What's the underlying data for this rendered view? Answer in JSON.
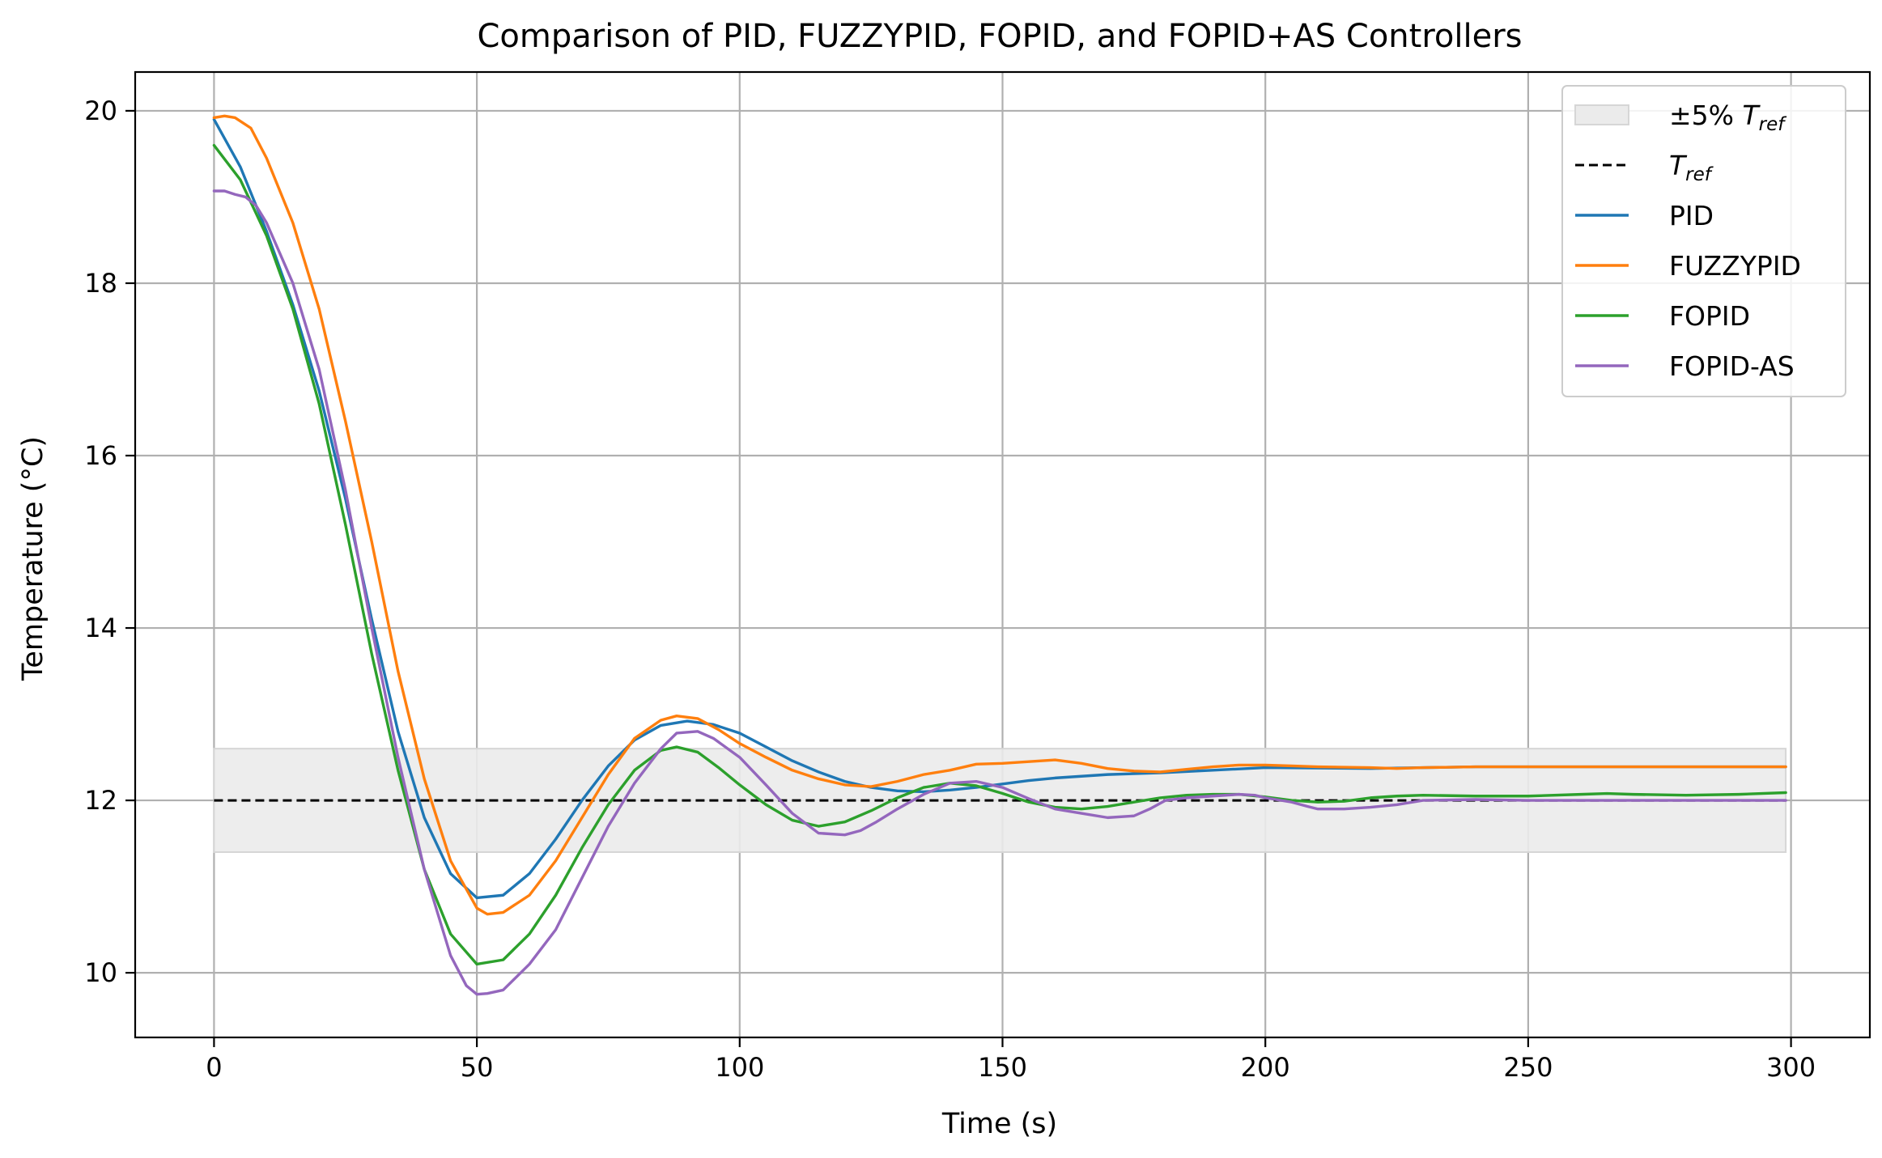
{
  "chart_data": {
    "type": "line",
    "title": "Comparison of PID, FUZZYPID, FOPID, and FOPID+AS Controllers",
    "xlabel": "Time (s)",
    "ylabel": "Temperature (°C)",
    "xlim": [
      -15,
      315
    ],
    "ylim": [
      9.25,
      20.45
    ],
    "xticks": [
      0,
      50,
      100,
      150,
      200,
      250,
      300
    ],
    "yticks": [
      10,
      12,
      14,
      16,
      18,
      20
    ],
    "grid": true,
    "legend_position": "top-right",
    "band": {
      "name": "±5% T",
      "name_sub": "ref",
      "x_range": [
        0,
        299
      ],
      "y_range": [
        11.4,
        12.6
      ],
      "color": "#ebebeb"
    },
    "reference": {
      "name": "T",
      "name_sub": "ref",
      "value": 12,
      "x_range": [
        0,
        299
      ],
      "color": "#000000"
    },
    "series": [
      {
        "name": "PID",
        "color": "#1f77b4",
        "points": [
          [
            0,
            19.9
          ],
          [
            5,
            19.35
          ],
          [
            10,
            18.6
          ],
          [
            15,
            17.75
          ],
          [
            20,
            16.75
          ],
          [
            25,
            15.5
          ],
          [
            30,
            14.1
          ],
          [
            35,
            12.8
          ],
          [
            40,
            11.8
          ],
          [
            45,
            11.15
          ],
          [
            50,
            10.87
          ],
          [
            55,
            10.9
          ],
          [
            60,
            11.15
          ],
          [
            65,
            11.55
          ],
          [
            70,
            12.0
          ],
          [
            75,
            12.4
          ],
          [
            80,
            12.7
          ],
          [
            85,
            12.87
          ],
          [
            90,
            12.92
          ],
          [
            95,
            12.88
          ],
          [
            100,
            12.78
          ],
          [
            105,
            12.62
          ],
          [
            110,
            12.46
          ],
          [
            115,
            12.33
          ],
          [
            120,
            12.22
          ],
          [
            125,
            12.15
          ],
          [
            130,
            12.11
          ],
          [
            135,
            12.1
          ],
          [
            140,
            12.12
          ],
          [
            145,
            12.15
          ],
          [
            150,
            12.19
          ],
          [
            155,
            12.23
          ],
          [
            160,
            12.26
          ],
          [
            170,
            12.3
          ],
          [
            180,
            12.32
          ],
          [
            190,
            12.35
          ],
          [
            200,
            12.38
          ],
          [
            220,
            12.37
          ],
          [
            240,
            12.39
          ],
          [
            260,
            12.39
          ],
          [
            280,
            12.39
          ],
          [
            299,
            12.39
          ]
        ]
      },
      {
        "name": "FUZZYPID",
        "color": "#ff7f0e",
        "points": [
          [
            0,
            19.92
          ],
          [
            2,
            19.94
          ],
          [
            4,
            19.92
          ],
          [
            7,
            19.8
          ],
          [
            10,
            19.45
          ],
          [
            15,
            18.7
          ],
          [
            20,
            17.7
          ],
          [
            25,
            16.4
          ],
          [
            30,
            15.0
          ],
          [
            35,
            13.5
          ],
          [
            40,
            12.25
          ],
          [
            45,
            11.3
          ],
          [
            50,
            10.75
          ],
          [
            52,
            10.68
          ],
          [
            55,
            10.7
          ],
          [
            60,
            10.9
          ],
          [
            65,
            11.3
          ],
          [
            70,
            11.8
          ],
          [
            75,
            12.3
          ],
          [
            80,
            12.72
          ],
          [
            85,
            12.93
          ],
          [
            88,
            12.98
          ],
          [
            92,
            12.95
          ],
          [
            96,
            12.82
          ],
          [
            100,
            12.66
          ],
          [
            105,
            12.5
          ],
          [
            110,
            12.35
          ],
          [
            115,
            12.25
          ],
          [
            120,
            12.18
          ],
          [
            125,
            12.16
          ],
          [
            130,
            12.22
          ],
          [
            135,
            12.3
          ],
          [
            140,
            12.35
          ],
          [
            145,
            12.42
          ],
          [
            150,
            12.43
          ],
          [
            155,
            12.45
          ],
          [
            160,
            12.47
          ],
          [
            165,
            12.43
          ],
          [
            170,
            12.37
          ],
          [
            175,
            12.34
          ],
          [
            180,
            12.33
          ],
          [
            185,
            12.36
          ],
          [
            190,
            12.39
          ],
          [
            195,
            12.41
          ],
          [
            200,
            12.41
          ],
          [
            205,
            12.4
          ],
          [
            210,
            12.39
          ],
          [
            220,
            12.38
          ],
          [
            225,
            12.37
          ],
          [
            230,
            12.38
          ],
          [
            240,
            12.39
          ],
          [
            260,
            12.39
          ],
          [
            280,
            12.39
          ],
          [
            299,
            12.39
          ]
        ]
      },
      {
        "name": "FOPID",
        "color": "#2ca02c",
        "points": [
          [
            0,
            19.6
          ],
          [
            5,
            19.2
          ],
          [
            10,
            18.55
          ],
          [
            15,
            17.7
          ],
          [
            20,
            16.6
          ],
          [
            25,
            15.2
          ],
          [
            30,
            13.7
          ],
          [
            35,
            12.35
          ],
          [
            40,
            11.2
          ],
          [
            45,
            10.45
          ],
          [
            50,
            10.1
          ],
          [
            55,
            10.15
          ],
          [
            60,
            10.45
          ],
          [
            65,
            10.9
          ],
          [
            70,
            11.45
          ],
          [
            75,
            11.95
          ],
          [
            80,
            12.35
          ],
          [
            85,
            12.58
          ],
          [
            88,
            12.62
          ],
          [
            92,
            12.56
          ],
          [
            96,
            12.38
          ],
          [
            100,
            12.18
          ],
          [
            105,
            11.95
          ],
          [
            110,
            11.77
          ],
          [
            115,
            11.7
          ],
          [
            120,
            11.75
          ],
          [
            125,
            11.88
          ],
          [
            130,
            12.03
          ],
          [
            135,
            12.15
          ],
          [
            140,
            12.2
          ],
          [
            145,
            12.17
          ],
          [
            150,
            12.08
          ],
          [
            155,
            11.98
          ],
          [
            160,
            11.92
          ],
          [
            165,
            11.9
          ],
          [
            170,
            11.93
          ],
          [
            175,
            11.98
          ],
          [
            180,
            12.03
          ],
          [
            185,
            12.06
          ],
          [
            190,
            12.07
          ],
          [
            195,
            12.07
          ],
          [
            200,
            12.04
          ],
          [
            205,
            12.0
          ],
          [
            210,
            11.98
          ],
          [
            215,
            11.99
          ],
          [
            220,
            12.03
          ],
          [
            225,
            12.05
          ],
          [
            230,
            12.06
          ],
          [
            240,
            12.05
          ],
          [
            250,
            12.05
          ],
          [
            260,
            12.07
          ],
          [
            265,
            12.08
          ],
          [
            270,
            12.07
          ],
          [
            280,
            12.06
          ],
          [
            290,
            12.07
          ],
          [
            299,
            12.09
          ]
        ]
      },
      {
        "name": "FOPID-AS",
        "color": "#9467bd",
        "points": [
          [
            0,
            19.07
          ],
          [
            2,
            19.07
          ],
          [
            4,
            19.03
          ],
          [
            6,
            19.0
          ],
          [
            8,
            18.9
          ],
          [
            10,
            18.7
          ],
          [
            15,
            18.0
          ],
          [
            20,
            17.0
          ],
          [
            25,
            15.6
          ],
          [
            30,
            14.0
          ],
          [
            35,
            12.5
          ],
          [
            40,
            11.2
          ],
          [
            45,
            10.2
          ],
          [
            48,
            9.85
          ],
          [
            50,
            9.75
          ],
          [
            52,
            9.76
          ],
          [
            55,
            9.8
          ],
          [
            60,
            10.1
          ],
          [
            65,
            10.5
          ],
          [
            70,
            11.1
          ],
          [
            75,
            11.7
          ],
          [
            80,
            12.2
          ],
          [
            85,
            12.6
          ],
          [
            88,
            12.78
          ],
          [
            92,
            12.8
          ],
          [
            95,
            12.72
          ],
          [
            100,
            12.5
          ],
          [
            105,
            12.18
          ],
          [
            110,
            11.85
          ],
          [
            115,
            11.62
          ],
          [
            120,
            11.6
          ],
          [
            123,
            11.65
          ],
          [
            126,
            11.75
          ],
          [
            130,
            11.9
          ],
          [
            135,
            12.07
          ],
          [
            140,
            12.2
          ],
          [
            145,
            12.22
          ],
          [
            150,
            12.15
          ],
          [
            155,
            12.02
          ],
          [
            160,
            11.9
          ],
          [
            165,
            11.85
          ],
          [
            170,
            11.8
          ],
          [
            175,
            11.82
          ],
          [
            178,
            11.9
          ],
          [
            181,
            12.0
          ],
          [
            185,
            12.03
          ],
          [
            190,
            12.05
          ],
          [
            195,
            12.07
          ],
          [
            198,
            12.06
          ],
          [
            200,
            12.03
          ],
          [
            205,
            11.98
          ],
          [
            208,
            11.93
          ],
          [
            210,
            11.9
          ],
          [
            215,
            11.9
          ],
          [
            220,
            11.92
          ],
          [
            225,
            11.95
          ],
          [
            230,
            12.0
          ],
          [
            240,
            12.01
          ],
          [
            250,
            12.0
          ],
          [
            260,
            12.0
          ],
          [
            280,
            12.0
          ],
          [
            299,
            12.0
          ]
        ]
      }
    ]
  }
}
